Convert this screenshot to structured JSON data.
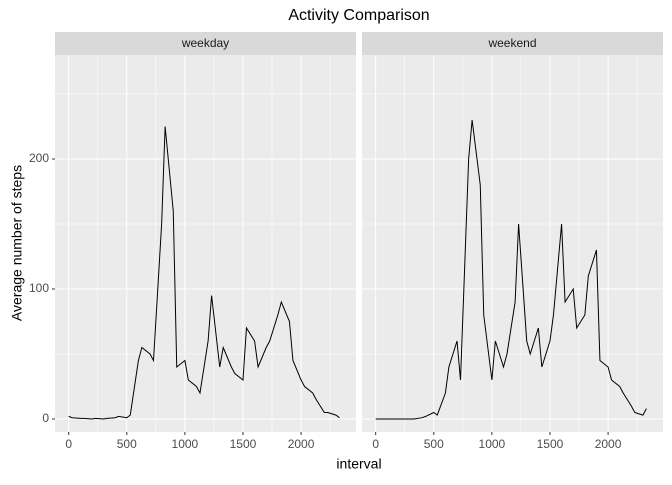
{
  "chart_data": {
    "type": "line",
    "title": "Activity Comparison",
    "xlabel": "interval",
    "ylabel": "Average number of steps",
    "x": [
      0,
      30,
      100,
      130,
      200,
      230,
      300,
      330,
      400,
      430,
      500,
      530,
      600,
      630,
      700,
      730,
      800,
      830,
      900,
      930,
      1000,
      1030,
      1100,
      1130,
      1200,
      1230,
      1300,
      1330,
      1400,
      1430,
      1500,
      1530,
      1600,
      1630,
      1700,
      1730,
      1800,
      1830,
      1900,
      1930,
      2000,
      2030,
      2100,
      2130,
      2200,
      2230,
      2300,
      2330
    ],
    "series": [
      {
        "name": "weekday",
        "color": "#000000",
        "values": [
          2,
          1,
          0.5,
          0.5,
          0,
          0.5,
          0,
          0.5,
          1,
          2,
          1,
          3,
          45,
          55,
          50,
          45,
          150,
          225,
          160,
          40,
          45,
          30,
          25,
          20,
          60,
          95,
          40,
          55,
          40,
          35,
          30,
          70,
          60,
          40,
          55,
          60,
          80,
          90,
          75,
          45,
          30,
          25,
          20,
          15,
          5,
          5,
          3,
          1
        ]
      },
      {
        "name": "weekend",
        "color": "#000000",
        "values": [
          0,
          0,
          0,
          0,
          0,
          0,
          0,
          0,
          1,
          2,
          5,
          3,
          20,
          40,
          60,
          30,
          200,
          230,
          180,
          80,
          30,
          60,
          40,
          50,
          90,
          150,
          60,
          50,
          70,
          40,
          60,
          80,
          150,
          90,
          100,
          70,
          80,
          110,
          130,
          45,
          40,
          30,
          25,
          20,
          10,
          5,
          3,
          8
        ]
      }
    ],
    "xlim": [
      -117.75,
      2472.75
    ],
    "xticks": [
      0,
      500,
      1000,
      1500,
      2000
    ],
    "ylim": [
      -10,
      280
    ],
    "yticks": [
      0,
      100,
      200
    ],
    "grid": true
  }
}
